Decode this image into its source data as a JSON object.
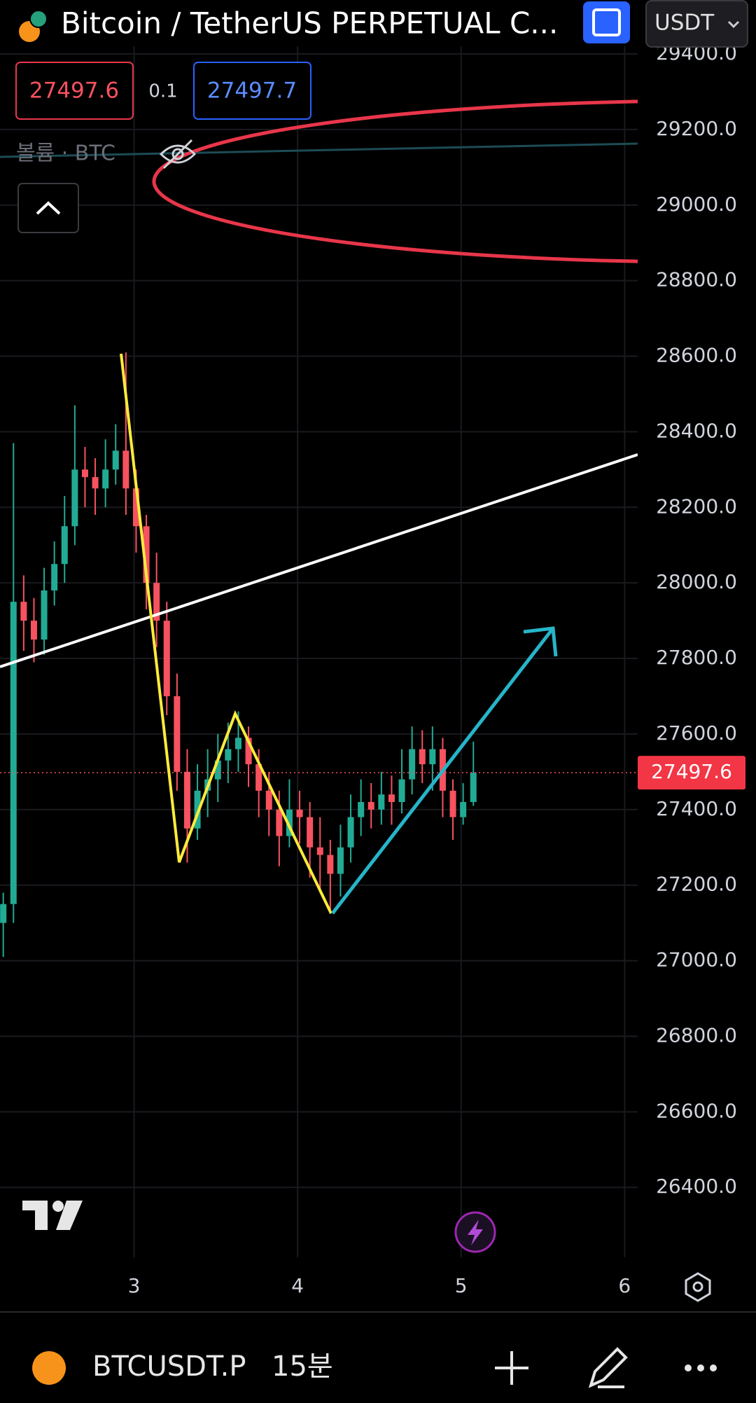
{
  "header": {
    "title": "Bitcoin / TetherUS PERPETUAL C...",
    "currency": "USDT"
  },
  "quote": {
    "bid": 27497.6,
    "spread": 0.1,
    "ask": 27497.7
  },
  "volume_label": "볼륨 · BTC",
  "chart_data": {
    "type": "candlestick",
    "x": [
      2.2,
      2.2625,
      2.325,
      2.3875,
      2.45,
      2.5125,
      2.575,
      2.6375,
      2.7,
      2.7625,
      2.825,
      2.8875,
      2.95,
      3.0125,
      3.075,
      3.1375,
      3.2,
      3.2625,
      3.325,
      3.3875,
      3.45,
      3.5125,
      3.575,
      3.6375,
      3.7,
      3.7625,
      3.825,
      3.8875,
      3.95,
      4.0125,
      4.075,
      4.1375,
      4.2,
      4.2625,
      4.325,
      4.3875,
      4.45,
      4.5125,
      4.575,
      4.6375,
      4.7,
      4.7625,
      4.825,
      4.8875,
      4.95,
      5.0125,
      5.075
    ],
    "open": [
      27100,
      27150,
      27950,
      27900,
      27850,
      27980,
      28050,
      28150,
      28300,
      28280,
      28250,
      28300,
      28350,
      28250,
      28150,
      28000,
      27900,
      27700,
      27500,
      27350,
      27450,
      27480,
      27530,
      27560,
      27590,
      27520,
      27450,
      27400,
      27330,
      27400,
      27380,
      27300,
      27280,
      27230,
      27300,
      27380,
      27420,
      27400,
      27440,
      27420,
      27480,
      27560,
      27520,
      27560,
      27450,
      27380,
      27420
    ],
    "high": [
      27180,
      28370,
      28020,
      27960,
      28040,
      28110,
      28230,
      28470,
      28360,
      28330,
      28380,
      28420,
      28610,
      28300,
      28180,
      28080,
      27950,
      27760,
      27560,
      27520,
      27560,
      27600,
      27630,
      27660,
      27620,
      27560,
      27500,
      27450,
      27480,
      27450,
      27420,
      27380,
      27320,
      27360,
      27440,
      27480,
      27470,
      27500,
      27490,
      27560,
      27620,
      27610,
      27620,
      27590,
      27480,
      27470,
      27580
    ],
    "low": [
      27010,
      27100,
      27820,
      27790,
      27810,
      27940,
      28000,
      28100,
      28200,
      28180,
      28200,
      28260,
      28180,
      28080,
      27930,
      27830,
      27650,
      27450,
      27260,
      27320,
      27380,
      27420,
      27470,
      27500,
      27460,
      27380,
      27330,
      27250,
      27300,
      27310,
      27220,
      27180,
      27130,
      27170,
      27260,
      27330,
      27350,
      27360,
      27360,
      27390,
      27440,
      27470,
      27450,
      27380,
      27320,
      27360,
      27410
    ],
    "close": [
      27150,
      27950,
      27900,
      27850,
      27980,
      28050,
      28150,
      28300,
      28280,
      28250,
      28300,
      28350,
      28250,
      28150,
      28000,
      27900,
      27700,
      27500,
      27350,
      27450,
      27480,
      27530,
      27560,
      27590,
      27520,
      27450,
      27400,
      27330,
      27400,
      27380,
      27300,
      27280,
      27230,
      27300,
      27380,
      27420,
      27400,
      27440,
      27420,
      27480,
      27560,
      27520,
      27560,
      27450,
      27380,
      27420,
      27497.6
    ],
    "up_color": "#22ab94",
    "down_color": "#f7525f",
    "xlim": [
      2.18,
      6.08
    ],
    "ylim": [
      26215,
      29413
    ],
    "xticks": [
      3,
      4,
      5,
      6
    ],
    "yticks": [
      {
        "value": 29400,
        "label": "29400.0"
      },
      {
        "value": 29200,
        "label": "29200.0"
      },
      {
        "value": 29000,
        "label": "29000.0"
      },
      {
        "value": 28800,
        "label": "28800.0"
      },
      {
        "value": 28600,
        "label": "28600.0"
      },
      {
        "value": 28400,
        "label": "28400.0"
      },
      {
        "value": 28200,
        "label": "28200.0"
      },
      {
        "value": 28000,
        "label": "28000.0"
      },
      {
        "value": 27800,
        "label": "27800.0"
      },
      {
        "value": 27600,
        "label": "27600.0"
      },
      {
        "value": 27400,
        "label": "27400.0"
      },
      {
        "value": 27200,
        "label": "27200.0"
      },
      {
        "value": 27000,
        "label": "27000.0"
      },
      {
        "value": 26800,
        "label": "26800.0"
      },
      {
        "value": 26600,
        "label": "26600.0"
      },
      {
        "value": 26400,
        "label": "26400.0"
      }
    ],
    "grid": true
  },
  "footer": {
    "symbol": "BTCUSDT.P",
    "interval": "15분"
  }
}
